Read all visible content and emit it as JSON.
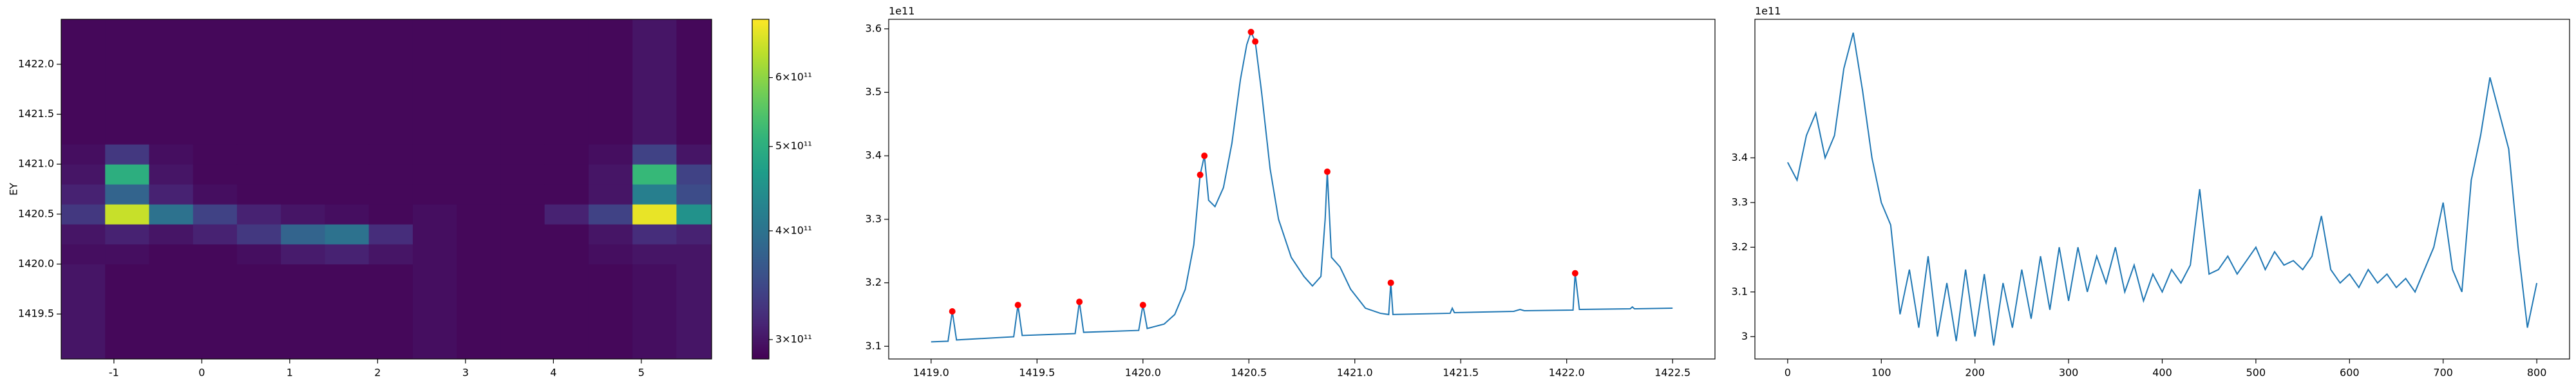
{
  "chart_data": [
    {
      "type": "heatmap",
      "ylabel": "EY",
      "colormap": "viridis",
      "log_color": true,
      "x_edges": [
        -1.6,
        -1.1,
        -0.6,
        -0.1,
        0.4,
        0.9,
        1.4,
        1.9,
        2.4,
        2.9,
        3.4,
        3.9,
        4.4,
        4.9,
        5.4,
        5.9
      ],
      "y_edges": [
        1419.05,
        1420.0,
        1420.2,
        1420.4,
        1420.6,
        1420.8,
        1421.0,
        1421.2,
        1422.45
      ],
      "z": [
        [
          300000000000.0,
          290000000000.0,
          290000000000.0,
          290000000000.0,
          290000000000.0,
          290000000000.0,
          290000000000.0,
          290000000000.0,
          295000000000.0,
          290000000000.0,
          290000000000.0,
          290000000000.0,
          290000000000.0,
          295000000000.0,
          300000000000.0
        ],
        [
          295000000000.0,
          295000000000.0,
          290000000000.0,
          290000000000.0,
          295000000000.0,
          305000000000.0,
          310000000000.0,
          300000000000.0,
          295000000000.0,
          290000000000.0,
          290000000000.0,
          290000000000.0,
          295000000000.0,
          300000000000.0,
          300000000000.0
        ],
        [
          300000000000.0,
          310000000000.0,
          300000000000.0,
          310000000000.0,
          330000000000.0,
          380000000000.0,
          400000000000.0,
          320000000000.0,
          295000000000.0,
          290000000000.0,
          290000000000.0,
          290000000000.0,
          300000000000.0,
          320000000000.0,
          310000000000.0
        ],
        [
          330000000000.0,
          650000000000.0,
          400000000000.0,
          340000000000.0,
          310000000000.0,
          300000000000.0,
          295000000000.0,
          290000000000.0,
          295000000000.0,
          290000000000.0,
          290000000000.0,
          310000000000.0,
          340000000000.0,
          680000000000.0,
          450000000000.0
        ],
        [
          310000000000.0,
          380000000000.0,
          310000000000.0,
          295000000000.0,
          290000000000.0,
          290000000000.0,
          290000000000.0,
          290000000000.0,
          290000000000.0,
          290000000000.0,
          290000000000.0,
          290000000000.0,
          300000000000.0,
          420000000000.0,
          350000000000.0
        ],
        [
          300000000000.0,
          500000000000.0,
          300000000000.0,
          290000000000.0,
          290000000000.0,
          290000000000.0,
          290000000000.0,
          290000000000.0,
          290000000000.0,
          290000000000.0,
          290000000000.0,
          290000000000.0,
          300000000000.0,
          520000000000.0,
          340000000000.0
        ],
        [
          295000000000.0,
          330000000000.0,
          295000000000.0,
          290000000000.0,
          290000000000.0,
          290000000000.0,
          290000000000.0,
          290000000000.0,
          290000000000.0,
          290000000000.0,
          290000000000.0,
          290000000000.0,
          295000000000.0,
          340000000000.0,
          300000000000.0
        ],
        [
          290000000000.0,
          290000000000.0,
          290000000000.0,
          290000000000.0,
          290000000000.0,
          290000000000.0,
          290000000000.0,
          290000000000.0,
          290000000000.0,
          290000000000.0,
          290000000000.0,
          290000000000.0,
          290000000000.0,
          300000000000.0,
          290000000000.0
        ]
      ],
      "clim": [
        285000000000.0,
        700000000000.0
      ],
      "cticks": [
        {
          "value": 300000000000.0,
          "label": "3×10¹¹"
        },
        {
          "value": 400000000000.0,
          "label": "4×10¹¹"
        },
        {
          "value": 500000000000.0,
          "label": "5×10¹¹"
        },
        {
          "value": 600000000000.0,
          "label": "6×10¹¹"
        }
      ],
      "xlim": [
        -1.6,
        5.8
      ],
      "xticks": [
        -1,
        0,
        1,
        2,
        3,
        4,
        5
      ],
      "ylim": [
        1419.05,
        1422.45
      ],
      "yticks": [
        1419.5,
        {
          "value": 1420,
          "label": "1420.0"
        },
        1420.5,
        {
          "value": 1421,
          "label": "1421.0"
        },
        1421.5,
        {
          "value": 1422,
          "label": "1422.0"
        }
      ]
    },
    {
      "type": "line",
      "offset_label": "1e11",
      "series": [
        {
          "color": "#1f77b4",
          "x": [
            1419.0,
            1419.08,
            1419.1,
            1419.12,
            1419.39,
            1419.41,
            1419.43,
            1419.68,
            1419.7,
            1419.72,
            1419.98,
            1420.0,
            1420.02,
            1420.1,
            1420.15,
            1420.2,
            1420.24,
            1420.27,
            1420.29,
            1420.31,
            1420.34,
            1420.38,
            1420.42,
            1420.46,
            1420.49,
            1420.51,
            1420.53,
            1420.56,
            1420.6,
            1420.64,
            1420.7,
            1420.76,
            1420.8,
            1420.84,
            1420.86,
            1420.87,
            1420.89,
            1420.93,
            1420.98,
            1421.05,
            1421.12,
            1421.16,
            1421.17,
            1421.18,
            1421.45,
            1421.46,
            1421.47,
            1421.75,
            1421.78,
            1421.8,
            1422.03,
            1422.04,
            1422.06,
            1422.3,
            1422.31,
            1422.32,
            1422.5
          ],
          "values": [
            3.107,
            3.108,
            3.155,
            3.11,
            3.115,
            3.165,
            3.117,
            3.12,
            3.17,
            3.122,
            3.125,
            3.165,
            3.128,
            3.135,
            3.15,
            3.19,
            3.26,
            3.37,
            3.4,
            3.33,
            3.32,
            3.35,
            3.42,
            3.52,
            3.575,
            3.595,
            3.58,
            3.5,
            3.38,
            3.3,
            3.24,
            3.21,
            3.195,
            3.21,
            3.3,
            3.375,
            3.24,
            3.225,
            3.19,
            3.16,
            3.152,
            3.15,
            3.2,
            3.15,
            3.152,
            3.16,
            3.153,
            3.155,
            3.158,
            3.156,
            3.157,
            3.215,
            3.158,
            3.159,
            3.162,
            3.159,
            3.16
          ]
        },
        {
          "color": "#ff0000",
          "marker": "o",
          "x": [
            1419.1,
            1419.41,
            1419.7,
            1420.0,
            1420.27,
            1420.29,
            1420.51,
            1420.53,
            1420.87,
            1421.17,
            1422.04
          ],
          "values": [
            3.155,
            3.165,
            3.17,
            3.165,
            3.37,
            3.4,
            3.595,
            3.58,
            3.375,
            3.2,
            3.215
          ]
        }
      ],
      "xlim": [
        1418.8,
        1422.7
      ],
      "xticks": [
        {
          "value": 1419,
          "label": "1419.0"
        },
        1419.5,
        {
          "value": 1420,
          "label": "1420.0"
        },
        1420.5,
        {
          "value": 1421,
          "label": "1421.0"
        },
        1421.5,
        {
          "value": 1422,
          "label": "1422.0"
        },
        1422.5
      ],
      "ylim": [
        3.08,
        3.615
      ],
      "yticks": [
        3.1,
        3.2,
        3.3,
        3.4,
        3.5,
        3.6
      ]
    },
    {
      "type": "line",
      "offset_label": "1e11",
      "series": [
        {
          "color": "#1f77b4",
          "x": [
            0,
            10,
            20,
            30,
            40,
            50,
            60,
            70,
            80,
            90,
            100,
            110,
            120,
            130,
            140,
            150,
            160,
            170,
            180,
            190,
            200,
            210,
            220,
            230,
            240,
            250,
            260,
            270,
            280,
            290,
            300,
            310,
            320,
            330,
            340,
            350,
            360,
            370,
            380,
            390,
            400,
            410,
            420,
            430,
            440,
            450,
            460,
            470,
            480,
            490,
            500,
            510,
            520,
            530,
            540,
            550,
            560,
            570,
            580,
            590,
            600,
            610,
            620,
            630,
            640,
            650,
            660,
            670,
            680,
            690,
            700,
            710,
            720,
            730,
            740,
            750,
            760,
            770,
            780,
            790,
            800
          ],
          "values": [
            3.39,
            3.35,
            3.45,
            3.5,
            3.4,
            3.45,
            3.6,
            3.68,
            3.55,
            3.4,
            3.3,
            3.25,
            3.05,
            3.15,
            3.02,
            3.18,
            3.0,
            3.12,
            2.99,
            3.15,
            3.0,
            3.14,
            2.98,
            3.12,
            3.02,
            3.15,
            3.04,
            3.18,
            3.06,
            3.2,
            3.08,
            3.2,
            3.1,
            3.18,
            3.12,
            3.2,
            3.1,
            3.16,
            3.08,
            3.14,
            3.1,
            3.15,
            3.12,
            3.16,
            3.33,
            3.14,
            3.15,
            3.18,
            3.14,
            3.17,
            3.2,
            3.15,
            3.19,
            3.16,
            3.17,
            3.15,
            3.18,
            3.27,
            3.15,
            3.12,
            3.14,
            3.11,
            3.15,
            3.12,
            3.14,
            3.11,
            3.13,
            3.1,
            3.15,
            3.2,
            3.3,
            3.15,
            3.1,
            3.35,
            3.45,
            3.58,
            3.5,
            3.42,
            3.2,
            3.02,
            3.12
          ]
        }
      ],
      "xlim": [
        -35,
        835
      ],
      "xticks": [
        0,
        100,
        200,
        300,
        400,
        500,
        600,
        700,
        800
      ],
      "ylim": [
        2.95,
        3.71
      ],
      "yticks": [
        3.0,
        3.1,
        3.2,
        3.3,
        3.4
      ]
    }
  ]
}
